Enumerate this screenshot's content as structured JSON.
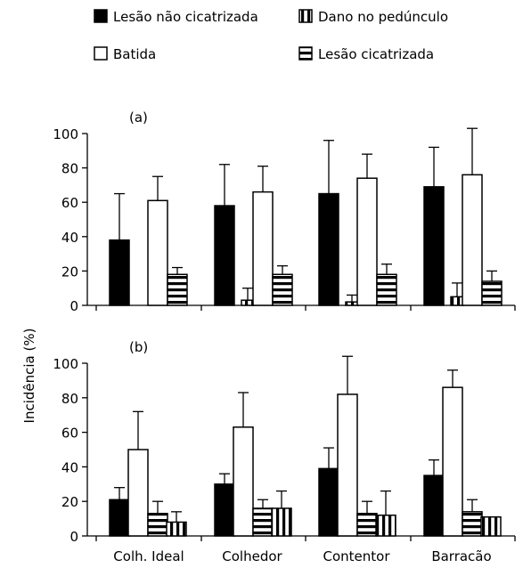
{
  "legend": [
    {
      "name": "Lesão não cicatrizada",
      "pattern": "solid"
    },
    {
      "name": "Dano no pedúnculo",
      "pattern": "vstripe"
    },
    {
      "name": "Batida",
      "pattern": "white"
    },
    {
      "name": "Lesão cicatrizada",
      "pattern": "hstripe"
    }
  ],
  "colors": {
    "solid": "#000000",
    "white": "#ffffff",
    "stroke": "#000000"
  },
  "chart_data": [
    {
      "type": "bar",
      "panel_label": "(a)",
      "categories": [
        "Colh. Ideal",
        "Colhedor",
        "Contentor",
        "Barracão"
      ],
      "ylabel": "Incidência (%)",
      "ylim": [
        0,
        100
      ],
      "yticks": [
        "0",
        "20",
        "40",
        "60",
        "80",
        "100"
      ],
      "series": [
        {
          "name": "Lesão não cicatrizada",
          "values": [
            38,
            58,
            65,
            69
          ],
          "errors": [
            27,
            24,
            31,
            23
          ]
        },
        {
          "name": "Batida",
          "values": [
            0,
            0,
            0,
            0
          ],
          "errors": [
            0,
            0,
            0,
            0
          ]
        },
        {
          "name": "Batida",
          "values": [
            61,
            66,
            74,
            76
          ],
          "errors": [
            14,
            15,
            14,
            27
          ]
        },
        {
          "name": "Lesão cicatrizada",
          "values": [
            18,
            18,
            18,
            14
          ],
          "errors": [
            4,
            5,
            6,
            6
          ]
        }
      ],
      "dano_pedunculo": {
        "values": [
          0,
          3,
          2,
          5
        ],
        "errors": [
          0,
          7,
          4,
          8
        ]
      }
    },
    {
      "type": "bar",
      "panel_label": "(b)",
      "categories": [
        "Colh. Ideal",
        "Colhedor",
        "Contentor",
        "Barracão"
      ],
      "ylabel": "Incidência (%)",
      "ylim": [
        0,
        100
      ],
      "yticks": [
        "0",
        "20",
        "40",
        "60",
        "80",
        "100"
      ],
      "series": [
        {
          "name": "Lesão não cicatrizada",
          "values": [
            21,
            30,
            39,
            35
          ],
          "errors": [
            7,
            6,
            12,
            9
          ]
        },
        {
          "name": "Batida",
          "values": [
            50,
            63,
            82,
            86
          ],
          "errors": [
            22,
            20,
            22,
            10
          ]
        },
        {
          "name": "Lesão cicatrizada",
          "values": [
            13,
            16,
            13,
            14
          ],
          "errors": [
            7,
            5,
            7,
            7
          ]
        },
        {
          "name": "Dano no pedúnculo",
          "values": [
            8,
            16,
            12,
            11
          ],
          "errors": [
            6,
            10,
            14,
            0
          ]
        }
      ]
    }
  ],
  "x_categories": [
    "Colh. Ideal",
    "Colhedor",
    "Contentor",
    "Barracão"
  ],
  "ylabel": "Incidência (%)"
}
